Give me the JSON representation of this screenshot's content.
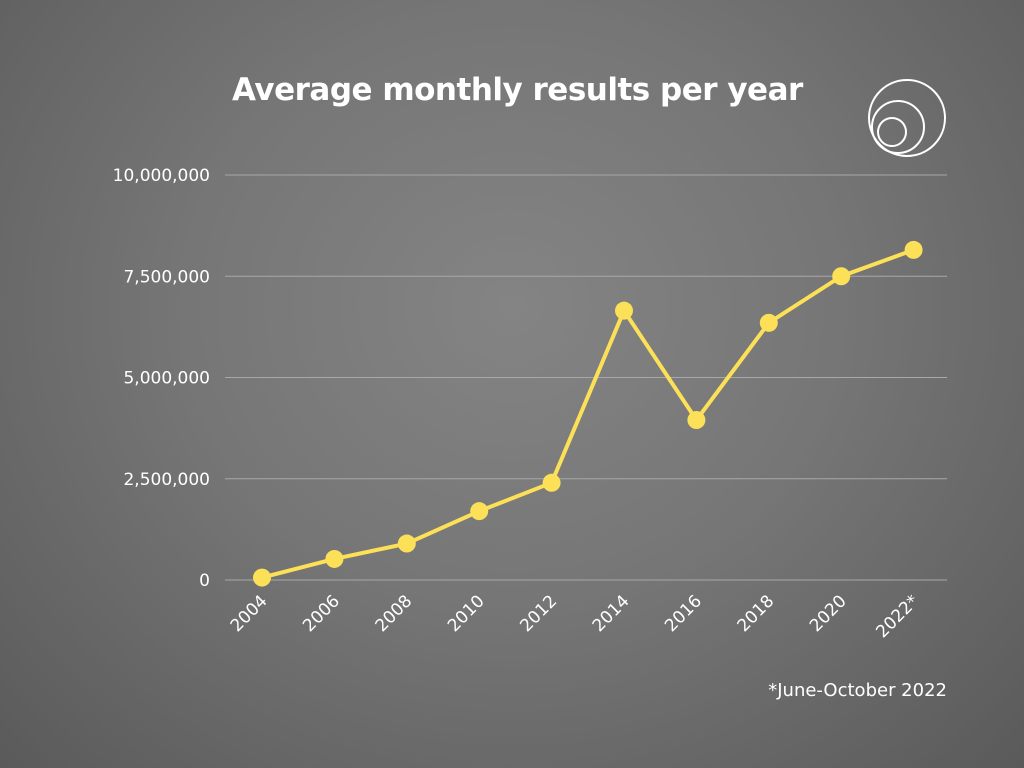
{
  "chart_data": {
    "type": "line",
    "title": "Average monthly results per year",
    "footnote": "*June-October 2022",
    "xlabel": "",
    "ylabel": "",
    "categories": [
      "2004",
      "2006",
      "2008",
      "2010",
      "2012",
      "2014",
      "2016",
      "2018",
      "2020",
      "2022*"
    ],
    "values": [
      60000,
      520000,
      900000,
      1700000,
      2400000,
      6650000,
      3950000,
      6350000,
      7500000,
      8150000
    ],
    "ylim": [
      0,
      10000000
    ],
    "yticks": [
      0,
      2500000,
      5000000,
      7500000,
      10000000
    ],
    "ytick_labels": [
      "0",
      "2,500,000",
      "5,000,000",
      "7,500,000",
      "10,000,000"
    ],
    "grid": true,
    "legend": "none",
    "colors": {
      "line": "#FCE058",
      "grid": "#a8a8a8",
      "text": "#ffffff"
    }
  },
  "logo": {
    "icon": "nested-circles-logo"
  }
}
